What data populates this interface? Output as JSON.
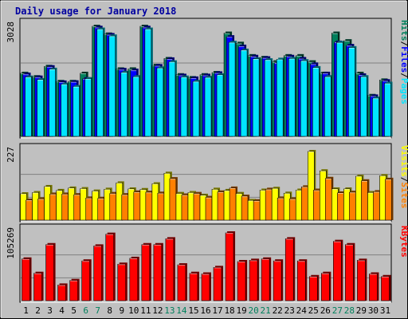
{
  "chart_data": [
    {
      "type": "bar",
      "title": "Daily usage for January 2018",
      "categories": [
        "1",
        "2",
        "3",
        "4",
        "5",
        "6",
        "7",
        "8",
        "9",
        "10",
        "11",
        "12",
        "13",
        "14",
        "15",
        "16",
        "17",
        "18",
        "19",
        "20",
        "21",
        "22",
        "23",
        "24",
        "25",
        "26",
        "27",
        "28",
        "29",
        "30",
        "31"
      ],
      "weekend_days": [
        "6",
        "7",
        "13",
        "14",
        "20",
        "21",
        "27",
        "28"
      ],
      "ymax_label": "3028",
      "ylim": [
        0,
        3028
      ],
      "ylabel_parts": [
        "Pages",
        "Files",
        "Hits"
      ],
      "series": [
        {
          "name": "Hits",
          "color": "#00805c",
          "values": [
            1735,
            1640,
            1925,
            1510,
            1510,
            1735,
            3028,
            2815,
            1855,
            1855,
            3028,
            1950,
            2140,
            1695,
            1615,
            1695,
            1755,
            2840,
            2560,
            2220,
            2170,
            2050,
            2220,
            2220,
            2050,
            1735,
            2840,
            2630,
            1735,
            1125,
            1550
          ]
        },
        {
          "name": "Files",
          "color": "#0000ff",
          "values": [
            1710,
            1630,
            1915,
            1495,
            1500,
            1585,
            3000,
            2800,
            1840,
            1820,
            3000,
            1945,
            2130,
            1680,
            1605,
            1680,
            1745,
            2740,
            2480,
            2200,
            2160,
            2020,
            2200,
            2140,
            1990,
            1735,
            2590,
            2500,
            1690,
            1110,
            1530
          ]
        },
        {
          "name": "Pages",
          "color": "#00e4ff",
          "values": [
            1630,
            1560,
            1845,
            1435,
            1370,
            1585,
            2950,
            2760,
            1760,
            1640,
            2950,
            1880,
            2050,
            1630,
            1510,
            1620,
            1690,
            2585,
            2370,
            2130,
            2105,
            2120,
            2140,
            2080,
            1890,
            1640,
            2580,
            2440,
            1640,
            1050,
            1460
          ]
        }
      ]
    },
    {
      "type": "bar",
      "ymax_label": "227",
      "ylim": [
        0,
        227
      ],
      "ylabel_parts": [
        "Sites",
        "Visits"
      ],
      "series": [
        {
          "name": "Visits",
          "color": "#ffff00",
          "values": [
            87,
            91,
            111,
            98,
            106,
            104,
            96,
            102,
            123,
            103,
            101,
            120,
            155,
            88,
            91,
            82,
            102,
            98,
            88,
            65,
            99,
            105,
            89,
            99,
            227,
            163,
            103,
            103,
            145,
            91,
            147
          ]
        },
        {
          "name": "Sites",
          "color": "#ff8000",
          "values": [
            66,
            70,
            86,
            86,
            84,
            73,
            72,
            88,
            84,
            93,
            92,
            89,
            137,
            83,
            88,
            75,
            93,
            106,
            79,
            64,
            102,
            73,
            70,
            110,
            99,
            138,
            90,
            92,
            130,
            94,
            135
          ]
        }
      ]
    },
    {
      "type": "bar",
      "ymax_label": "105269",
      "ylim": [
        0,
        105269
      ],
      "ylabel_parts": [
        "KBytes"
      ],
      "series": [
        {
          "name": "KBytes",
          "color": "#ff0000",
          "values": [
            64000,
            42000,
            86000,
            24000,
            31000,
            61000,
            84000,
            102000,
            56000,
            65000,
            86000,
            86000,
            95000,
            55000,
            42000,
            41000,
            51000,
            104000,
            60000,
            62000,
            64000,
            61000,
            95000,
            61000,
            37000,
            42000,
            91000,
            86000,
            62000,
            41000,
            37000
          ]
        }
      ]
    }
  ]
}
